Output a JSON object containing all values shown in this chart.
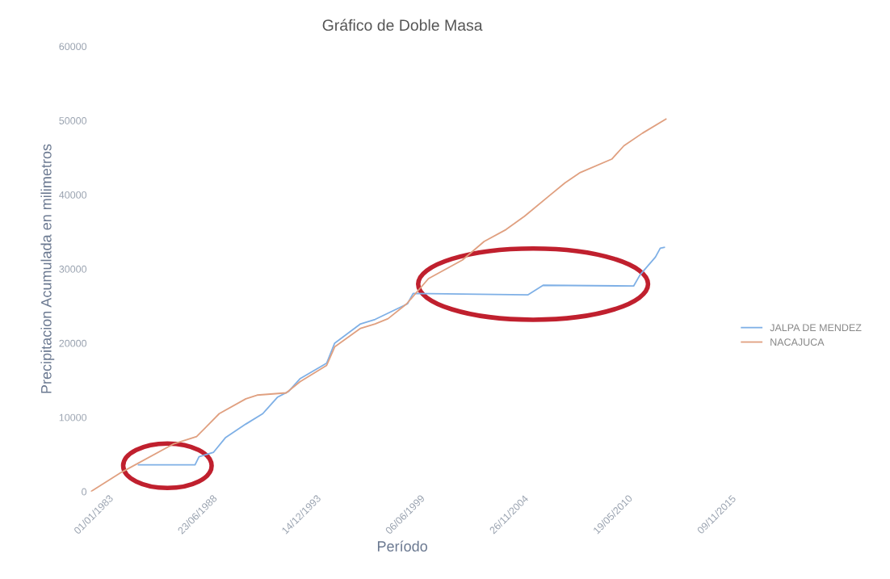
{
  "chart_data": {
    "type": "line",
    "title": "Gráfico de Doble Masa",
    "xlabel": "Período",
    "ylabel": "Precipitacion Acumulada en milimetros",
    "xlim": [
      "1983-01-01",
      "2015-11-09"
    ],
    "xticks": [
      {
        "value": "1983-01-01",
        "label": "01/01/1983"
      },
      {
        "value": "1988-06-23",
        "label": "23/06/1988"
      },
      {
        "value": "1993-12-14",
        "label": "14/12/1993"
      },
      {
        "value": "1999-06-06",
        "label": "06/06/1999"
      },
      {
        "value": "2004-11-26",
        "label": "26/11/2004"
      },
      {
        "value": "2010-05-19",
        "label": "19/05/2010"
      },
      {
        "value": "2015-11-09",
        "label": "09/11/2015"
      }
    ],
    "ylim": [
      0,
      60000
    ],
    "yticks": [
      0,
      10000,
      20000,
      30000,
      40000,
      50000,
      60000
    ],
    "grid": false,
    "legend": "right",
    "series": [
      {
        "name": "JALPA DE MENDEZ",
        "color": "#7fb0e6",
        "x": [
          "1985-07-08",
          "1988-07-01",
          "1988-09-16",
          "1989-06-23",
          "1990-02-12",
          "1991-03-07",
          "1992-01-27",
          "1992-11-02",
          "1993-06-08",
          "1994-01-12",
          "1995-06-10",
          "1995-11-12",
          "1997-03-25",
          "1997-12-30",
          "1999-09-14",
          "2000-01-01",
          "2006-01-17",
          "2006-11-09",
          "2011-08-18",
          "2011-12-20",
          "2012-10-11",
          "2013-01-12",
          "2013-03-31"
        ],
        "values": [
          3600,
          3600,
          4700,
          5300,
          7300,
          9100,
          10500,
          12700,
          13500,
          15200,
          17300,
          20000,
          22600,
          23200,
          25300,
          26700,
          26500,
          27800,
          27700,
          29200,
          31600,
          32800,
          32900
        ]
      },
      {
        "name": "NACAJUCA",
        "color": "#e0a080",
        "x": [
          "1983-01-01",
          "1984-08-14",
          "1987-05-07",
          "1988-07-31",
          "1989-10-10",
          "1991-03-07",
          "1991-10-10",
          "1993-04-23",
          "1994-01-12",
          "1995-06-10",
          "1995-11-12",
          "1997-03-25",
          "1997-12-30",
          "1998-09-05",
          "1999-08-29",
          "2000-10-23",
          "2002-08-07",
          "2003-09-30",
          "2004-11-23",
          "2005-11-16",
          "2007-03-13",
          "2008-01-03",
          "2008-10-26",
          "2010-06-23",
          "2011-02-12",
          "2012-02-05",
          "2013-05-01"
        ],
        "values": [
          0,
          2600,
          6400,
          7400,
          10500,
          12500,
          13000,
          13300,
          14800,
          17000,
          19500,
          22000,
          22600,
          23300,
          25300,
          28700,
          31200,
          33700,
          35300,
          37100,
          39900,
          41600,
          43000,
          44800,
          46600,
          48300,
          50200
        ]
      }
    ]
  }
}
